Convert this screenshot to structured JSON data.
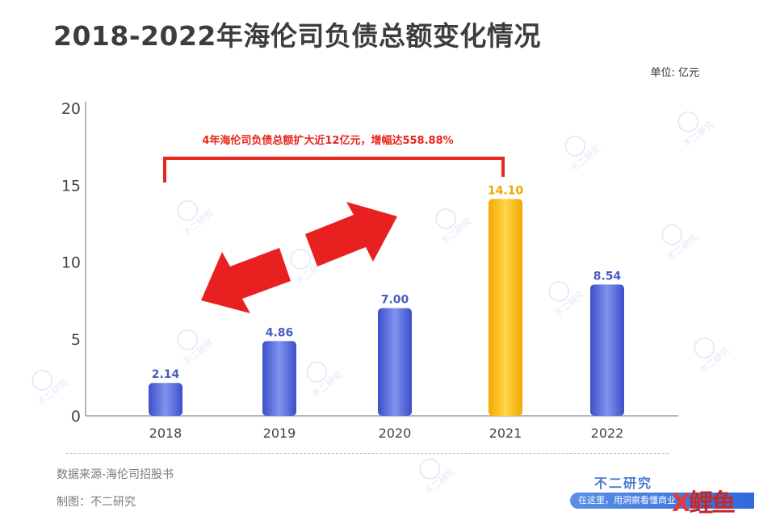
{
  "title": "2018-2022年海伦司负债总额变化情况",
  "unit": "单位: 亿元",
  "annotation": "4年海伦司负债总额扩大近12亿元，增幅达558.88%",
  "source": "数据来源-海伦司招股书",
  "credit": "制图：不二研究",
  "brand": "不二研究",
  "banner": "在这里，用洞察看懂商业",
  "logo_text": "X 鲤 鱼",
  "watermark_text": "不二研究",
  "colors": {
    "bar_default": "#4f63d8",
    "bar_highlight": "#f7b70f",
    "label_default": "#4a5cc4",
    "label_highlight": "#f0a500",
    "annotation": "#e8261c",
    "arrow": "#e8201f",
    "axis": "#9e9e9e"
  },
  "chart_data": {
    "type": "bar",
    "categories": [
      "2018",
      "2019",
      "2020",
      "2021",
      "2022"
    ],
    "values": [
      2.14,
      4.86,
      7.0,
      14.1,
      8.54
    ],
    "value_labels": [
      "2.14",
      "4.86",
      "7.00",
      "14.10",
      "8.54"
    ],
    "highlight_index": 3,
    "ylim": [
      0,
      20
    ],
    "yticks": [
      "0",
      "5",
      "10",
      "15",
      "20"
    ],
    "grid": false,
    "title": "2018-2022年海伦司负债总额变化情况",
    "xlabel": "",
    "ylabel": ""
  }
}
